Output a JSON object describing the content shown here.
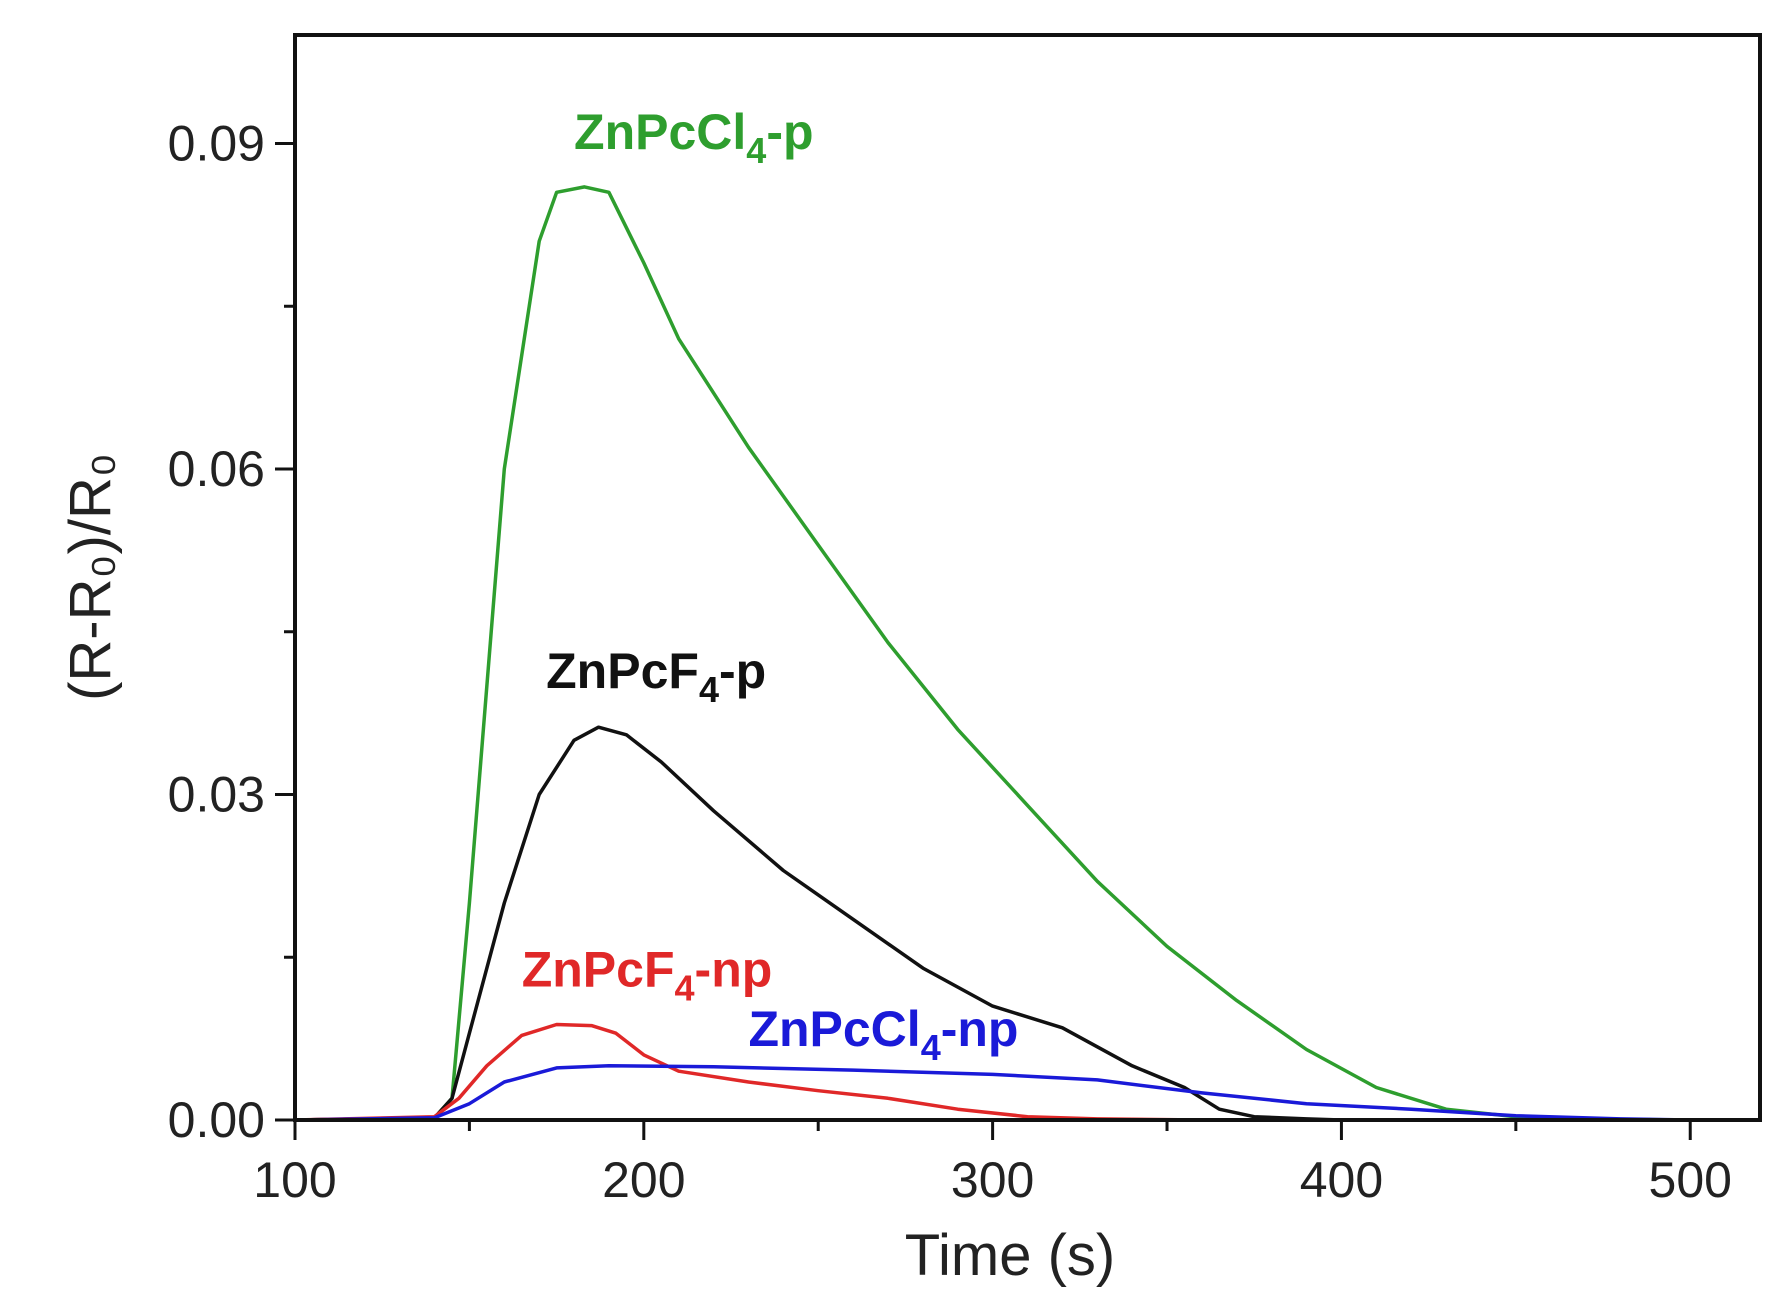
{
  "chart_data": {
    "type": "line",
    "title": "",
    "xlabel": "Time (s)",
    "ylabel": "(R-R₀)/R₀",
    "xlim": [
      100,
      520
    ],
    "ylim": [
      0,
      0.1
    ],
    "x_ticks": [
      100,
      200,
      300,
      400,
      500
    ],
    "x_tick_labels": [
      "100",
      "200",
      "300",
      "400",
      "500"
    ],
    "y_ticks": [
      0,
      0.03,
      0.06,
      0.09
    ],
    "y_tick_labels": [
      "0.00",
      "0.03",
      "0.06",
      "0.09"
    ],
    "grid": false,
    "series": [
      {
        "name": "ZnPcCl4-p",
        "label": {
          "base": "ZnPcCl",
          "sub": "4",
          "suffix": "-p"
        },
        "color": "#2e9e2e",
        "label_anchor": [
          180,
          0.0895
        ],
        "points": [
          [
            100,
            0
          ],
          [
            140,
            0.0002
          ],
          [
            145,
            0.002
          ],
          [
            150,
            0.02
          ],
          [
            160,
            0.06
          ],
          [
            170,
            0.081
          ],
          [
            175,
            0.0855
          ],
          [
            183,
            0.086
          ],
          [
            190,
            0.0855
          ],
          [
            200,
            0.079
          ],
          [
            210,
            0.072
          ],
          [
            230,
            0.062
          ],
          [
            250,
            0.053
          ],
          [
            270,
            0.044
          ],
          [
            290,
            0.036
          ],
          [
            310,
            0.029
          ],
          [
            330,
            0.022
          ],
          [
            350,
            0.016
          ],
          [
            370,
            0.011
          ],
          [
            390,
            0.0065
          ],
          [
            410,
            0.003
          ],
          [
            430,
            0.001
          ],
          [
            450,
            0.0003
          ],
          [
            470,
            0.0001
          ],
          [
            500,
            0
          ]
        ]
      },
      {
        "name": "ZnPcF4-p",
        "label": {
          "base": "ZnPcF",
          "sub": "4",
          "suffix": "-p"
        },
        "color": "#111111",
        "label_anchor": [
          172,
          0.0398
        ],
        "points": [
          [
            100,
            0
          ],
          [
            140,
            0.0002
          ],
          [
            145,
            0.002
          ],
          [
            150,
            0.008
          ],
          [
            160,
            0.02
          ],
          [
            170,
            0.03
          ],
          [
            180,
            0.035
          ],
          [
            187,
            0.0362
          ],
          [
            195,
            0.0355
          ],
          [
            205,
            0.033
          ],
          [
            220,
            0.0285
          ],
          [
            240,
            0.023
          ],
          [
            260,
            0.0185
          ],
          [
            280,
            0.014
          ],
          [
            300,
            0.0105
          ],
          [
            320,
            0.0085
          ],
          [
            340,
            0.005
          ],
          [
            355,
            0.003
          ],
          [
            365,
            0.001
          ],
          [
            375,
            0.0003
          ],
          [
            390,
            0.0001
          ],
          [
            400,
            0
          ]
        ]
      },
      {
        "name": "ZnPcF4-np",
        "label": {
          "base": "ZnPcF",
          "sub": "4",
          "suffix": "-np"
        },
        "color": "#e02828",
        "label_anchor": [
          165,
          0.0123
        ],
        "points": [
          [
            100,
            0
          ],
          [
            140,
            0.0003
          ],
          [
            147,
            0.002
          ],
          [
            155,
            0.005
          ],
          [
            165,
            0.0078
          ],
          [
            175,
            0.0088
          ],
          [
            185,
            0.0087
          ],
          [
            192,
            0.008
          ],
          [
            200,
            0.006
          ],
          [
            210,
            0.0045
          ],
          [
            230,
            0.0035
          ],
          [
            250,
            0.0027
          ],
          [
            270,
            0.002
          ],
          [
            290,
            0.001
          ],
          [
            310,
            0.0003
          ],
          [
            330,
            0.0001
          ],
          [
            360,
            0
          ],
          [
            400,
            0
          ]
        ]
      },
      {
        "name": "ZnPcCl4-np",
        "label": {
          "base": "ZnPcCl",
          "sub": "4",
          "suffix": "-np"
        },
        "color": "#1a1ad8",
        "label_anchor": [
          230,
          0.0068
        ],
        "points": [
          [
            100,
            0
          ],
          [
            140,
            0.0002
          ],
          [
            150,
            0.0015
          ],
          [
            160,
            0.0035
          ],
          [
            175,
            0.0048
          ],
          [
            190,
            0.005
          ],
          [
            220,
            0.0049
          ],
          [
            260,
            0.0046
          ],
          [
            300,
            0.0042
          ],
          [
            330,
            0.0037
          ],
          [
            360,
            0.0025
          ],
          [
            390,
            0.0015
          ],
          [
            420,
            0.001
          ],
          [
            450,
            0.0004
          ],
          [
            480,
            0.0001
          ],
          [
            500,
            0
          ]
        ]
      }
    ]
  }
}
